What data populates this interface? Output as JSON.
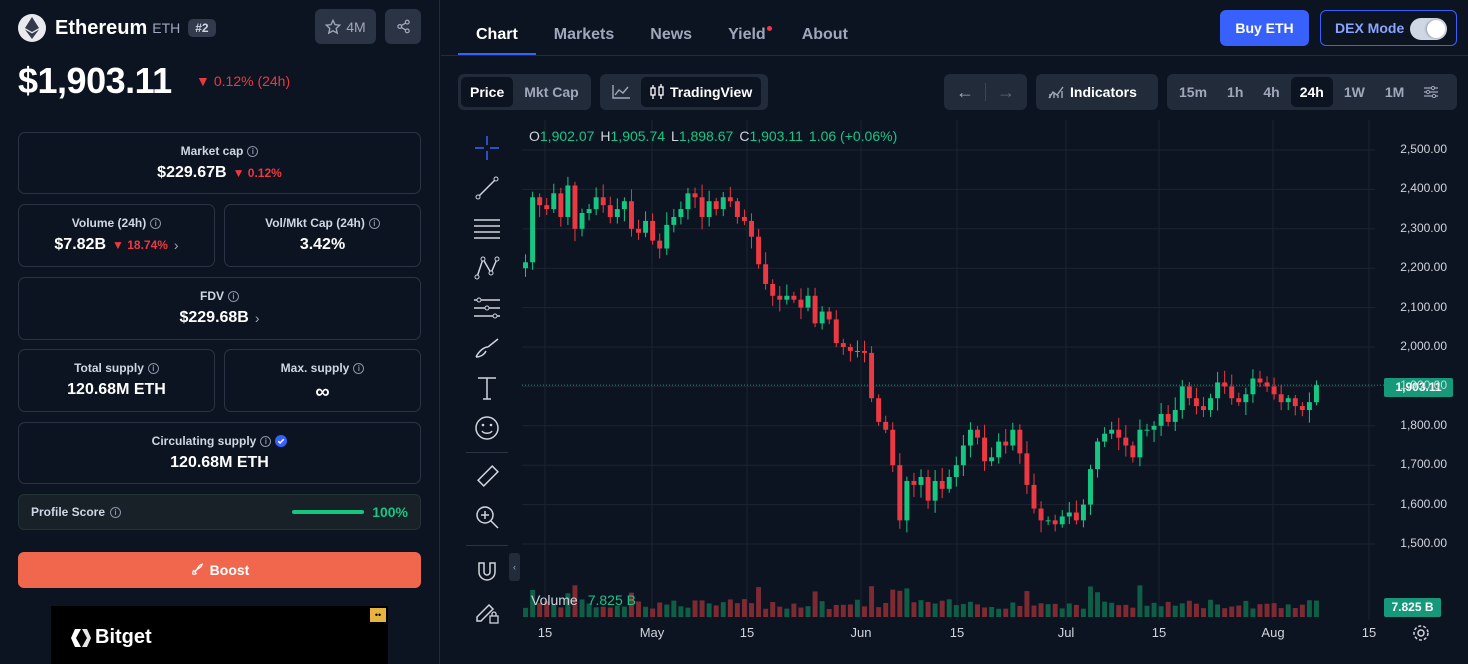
{
  "coin": {
    "name": "Ethereum",
    "symbol": "ETH",
    "rank": "#2",
    "watchlist_count": "4M",
    "price": "$1,903.11",
    "change": "0.12% (24h)"
  },
  "stats": {
    "market_cap": {
      "label": "Market cap",
      "value": "$229.67B",
      "change": "0.12%"
    },
    "volume": {
      "label": "Volume (24h)",
      "value": "$7.82B",
      "change": "18.74%"
    },
    "vol_mkt_cap": {
      "label": "Vol/Mkt Cap (24h)",
      "value": "3.42%"
    },
    "fdv": {
      "label": "FDV",
      "value": "$229.68B"
    },
    "total_supply": {
      "label": "Total supply",
      "value": "120.68M ETH"
    },
    "max_supply": {
      "label": "Max. supply",
      "value": "∞"
    },
    "circulating_supply": {
      "label": "Circulating supply",
      "value": "120.68M ETH"
    }
  },
  "profile": {
    "label": "Profile Score",
    "value": "100%",
    "score": 1.0
  },
  "boost_label": "Boost",
  "ad": {
    "brand": "Bitget"
  },
  "tabs": [
    "Chart",
    "Markets",
    "News",
    "Yield",
    "About"
  ],
  "buy_label": "Buy ETH",
  "dex_label": "DEX Mode",
  "toolbar": {
    "price": "Price",
    "mktcap": "Mkt Cap",
    "tradingview": "TradingView",
    "indicators": "Indicators",
    "intervals": [
      "15m",
      "1h",
      "4h",
      "24h",
      "1W",
      "1M"
    ],
    "selected_interval": "24h"
  },
  "ohlc": {
    "o_key": "O",
    "o": "1,902.07",
    "h_key": "H",
    "h": "1,905.74",
    "l_key": "L",
    "l": "1,898.67",
    "c_key": "C",
    "c": "1,903.11",
    "chg": "1.06 (+0.06%)"
  },
  "volume_label": "Volume",
  "volume_value": "7.825 B",
  "current_price_tag": "1,903.11",
  "current_volume_tag": "7.825 B",
  "colors": {
    "up": "#16c784",
    "down": "#ea3943",
    "accent": "#3861fb"
  },
  "chart_data": {
    "type": "candlestick",
    "ylim": [
      1450,
      2550
    ],
    "yticks": [
      "2,500.00",
      "2,400.00",
      "2,300.00",
      "2,200.00",
      "2,100.00",
      "2,000.00",
      "1,900.00",
      "1,800.00",
      "1,700.00",
      "1,600.00",
      "1,500.00"
    ],
    "xticks": [
      "15",
      "May",
      "15",
      "Jun",
      "15",
      "Jul",
      "15",
      "Aug",
      "15"
    ],
    "current_price": 1903.11,
    "closes": [
      2215,
      2380,
      2360,
      2350,
      2390,
      2330,
      2410,
      2300,
      2340,
      2350,
      2380,
      2360,
      2330,
      2350,
      2370,
      2300,
      2290,
      2320,
      2270,
      2250,
      2310,
      2330,
      2350,
      2390,
      2380,
      2330,
      2370,
      2350,
      2380,
      2370,
      2330,
      2320,
      2280,
      2210,
      2160,
      2130,
      2120,
      2130,
      2120,
      2100,
      2130,
      2060,
      2090,
      2070,
      2010,
      2000,
      1990,
      1990,
      1985,
      1870,
      1810,
      1790,
      1700,
      1560,
      1660,
      1650,
      1670,
      1610,
      1660,
      1640,
      1670,
      1700,
      1750,
      1790,
      1770,
      1710,
      1720,
      1760,
      1750,
      1790,
      1730,
      1650,
      1590,
      1560,
      1560,
      1550,
      1570,
      1580,
      1560,
      1600,
      1690,
      1760,
      1780,
      1790,
      1770,
      1750,
      1720,
      1790,
      1790,
      1800,
      1830,
      1810,
      1840,
      1900,
      1870,
      1850,
      1840,
      1870,
      1910,
      1900,
      1870,
      1860,
      1880,
      1920,
      1910,
      1900,
      1880,
      1860,
      1870,
      1850,
      1840,
      1860,
      1903
    ]
  }
}
